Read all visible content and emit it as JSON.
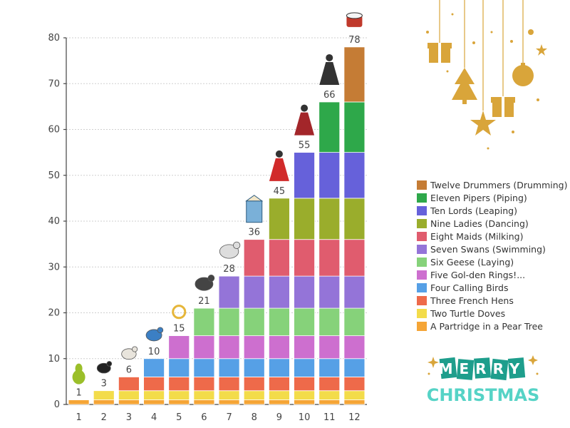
{
  "chart_data": {
    "type": "bar",
    "stacked": true,
    "categories": [
      "1",
      "2",
      "3",
      "4",
      "5",
      "6",
      "7",
      "8",
      "9",
      "10",
      "11",
      "12"
    ],
    "totals": [
      1,
      3,
      6,
      10,
      15,
      21,
      28,
      36,
      45,
      55,
      66,
      78
    ],
    "ylim": [
      0,
      80
    ],
    "yticks": [
      0,
      10,
      20,
      30,
      40,
      50,
      60,
      70,
      80
    ],
    "grid": true,
    "legend_position": "right",
    "series": [
      {
        "name": "A Partridge in a Pear Tree",
        "color": "#f5a536",
        "values": [
          1,
          1,
          1,
          1,
          1,
          1,
          1,
          1,
          1,
          1,
          1,
          1
        ]
      },
      {
        "name": "Two Turtle Doves",
        "color": "#f3dc4a",
        "values": [
          0,
          2,
          2,
          2,
          2,
          2,
          2,
          2,
          2,
          2,
          2,
          2
        ]
      },
      {
        "name": "Three French Hens",
        "color": "#ee6a4a",
        "values": [
          0,
          0,
          3,
          3,
          3,
          3,
          3,
          3,
          3,
          3,
          3,
          3
        ]
      },
      {
        "name": "Four Calling Birds",
        "color": "#56a0e6",
        "values": [
          0,
          0,
          0,
          4,
          4,
          4,
          4,
          4,
          4,
          4,
          4,
          4
        ]
      },
      {
        "name": "Five Gol-den Rings!...",
        "color": "#cd6fcf",
        "values": [
          0,
          0,
          0,
          0,
          5,
          5,
          5,
          5,
          5,
          5,
          5,
          5
        ]
      },
      {
        "name": "Six Geese (Laying)",
        "color": "#86d27a",
        "values": [
          0,
          0,
          0,
          0,
          0,
          6,
          6,
          6,
          6,
          6,
          6,
          6
        ]
      },
      {
        "name": "Seven Swans (Swimming)",
        "color": "#9474d8",
        "values": [
          0,
          0,
          0,
          0,
          0,
          0,
          7,
          7,
          7,
          7,
          7,
          7
        ]
      },
      {
        "name": "Eight Maids (Milking)",
        "color": "#e05c6e",
        "values": [
          0,
          0,
          0,
          0,
          0,
          0,
          0,
          8,
          8,
          8,
          8,
          8
        ]
      },
      {
        "name": "Nine Ladies (Dancing)",
        "color": "#9aad2c",
        "values": [
          0,
          0,
          0,
          0,
          0,
          0,
          0,
          0,
          9,
          9,
          9,
          9
        ]
      },
      {
        "name": "Ten Lords (Leaping)",
        "color": "#6661da",
        "values": [
          0,
          0,
          0,
          0,
          0,
          0,
          0,
          0,
          0,
          10,
          10,
          10
        ]
      },
      {
        "name": "Eleven Pipers (Piping)",
        "color": "#2ea84a",
        "values": [
          0,
          0,
          0,
          0,
          0,
          0,
          0,
          0,
          0,
          0,
          11,
          11
        ]
      },
      {
        "name": "Twelve Drummers (Drumming)",
        "color": "#c57c35",
        "values": [
          0,
          0,
          0,
          0,
          0,
          0,
          0,
          0,
          0,
          0,
          0,
          12
        ]
      }
    ]
  },
  "decor": {
    "icons": [
      "pear-icon",
      "dove-icon",
      "hen-icon",
      "bird-icon",
      "ring-icon",
      "geese-icon",
      "swan-icon",
      "milk-carton-icon",
      "dancer-icon",
      "lord-icon",
      "piper-icon",
      "drum-icon"
    ],
    "greeting_line1": "MERRY",
    "greeting_line2": "CHRISTMAS",
    "ornament_color": "#d9a53a",
    "greeting_color_1": "#1e9e8c",
    "greeting_color_2": "#56d3c6"
  }
}
